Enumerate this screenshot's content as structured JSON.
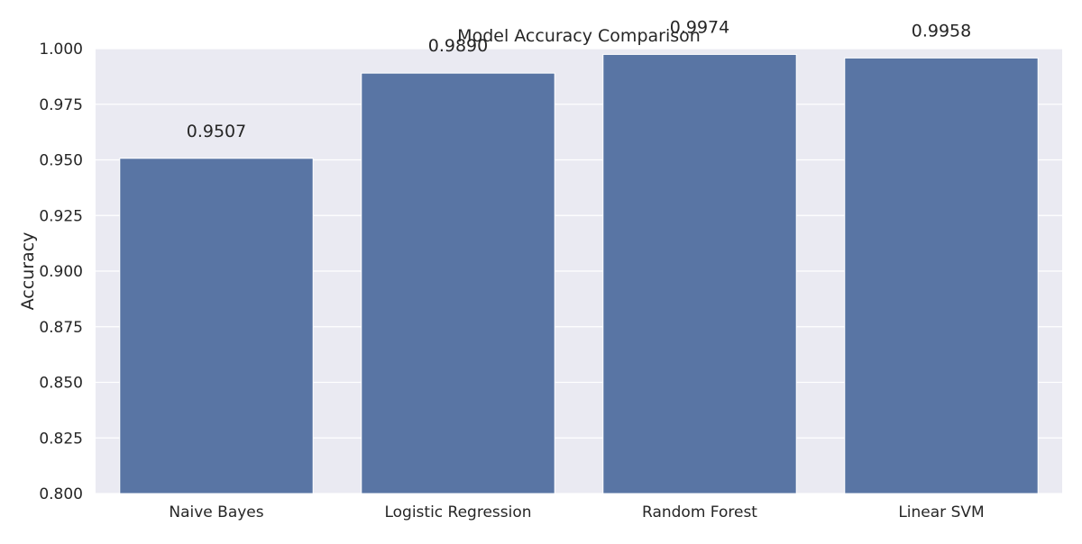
{
  "chart_data": {
    "type": "bar",
    "title": "Model Accuracy Comparison",
    "xlabel": "",
    "ylabel": "Accuracy",
    "categories": [
      "Naive Bayes",
      "Logistic Regression",
      "Random Forest",
      "Linear SVM"
    ],
    "values": [
      0.9507,
      0.989,
      0.9974,
      0.9958
    ],
    "value_labels": [
      "0.9507",
      "0.9890",
      "0.9974",
      "0.9958"
    ],
    "ylim": [
      0.8,
      1.0
    ],
    "yticks": [
      0.8,
      0.825,
      0.85,
      0.875,
      0.9,
      0.925,
      0.95,
      0.975,
      1.0
    ],
    "ytick_labels": [
      "0.800",
      "0.825",
      "0.850",
      "0.875",
      "0.900",
      "0.925",
      "0.950",
      "0.975",
      "1.000"
    ],
    "grid": true,
    "legend": "none",
    "colors": {
      "bar": "#5975a4",
      "plot_background": "#eaeaf2",
      "grid": "#ffffff",
      "text": "#262626"
    }
  }
}
